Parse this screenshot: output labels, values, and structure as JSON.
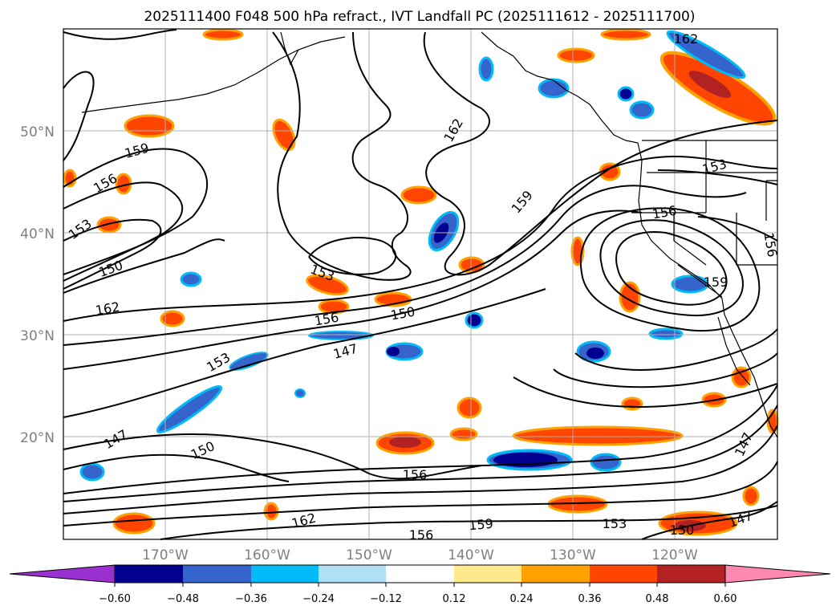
{
  "title": "2025111400 F048 500 hPa refract., IVT Landfall PC (2025111612 - 2025111700)",
  "map": {
    "lat_labels": [
      "50°N",
      "40°N",
      "30°N",
      "20°N"
    ],
    "lon_labels": [
      "170°W",
      "160°W",
      "150°W",
      "140°W",
      "130°W",
      "120°W"
    ],
    "contour_labels": [
      "162",
      "162",
      "159",
      "156",
      "153",
      "150",
      "162",
      "153",
      "156",
      "150",
      "147",
      "153",
      "147",
      "150",
      "159",
      "153",
      "156",
      "159",
      "156",
      "156",
      "159",
      "150",
      "153",
      "147",
      "162",
      "147",
      "156",
      "150",
      "153",
      "156",
      "159"
    ]
  },
  "colorbar": {
    "ticks": [
      "−0.60",
      "−0.48",
      "−0.36",
      "−0.24",
      "−0.12",
      "0.12",
      "0.24",
      "0.36",
      "0.48",
      "0.60"
    ],
    "colors": [
      "#9b30d0",
      "#000090",
      "#3464cc",
      "#00bbf7",
      "#b0e0f6",
      "#ffffff",
      "#ffe98c",
      "#ffa200",
      "#ff4500",
      "#b22222",
      "#ff88b0"
    ]
  },
  "colors": {
    "contour": "#000000",
    "grid": "#b0b0b0",
    "coast": "#000000"
  }
}
